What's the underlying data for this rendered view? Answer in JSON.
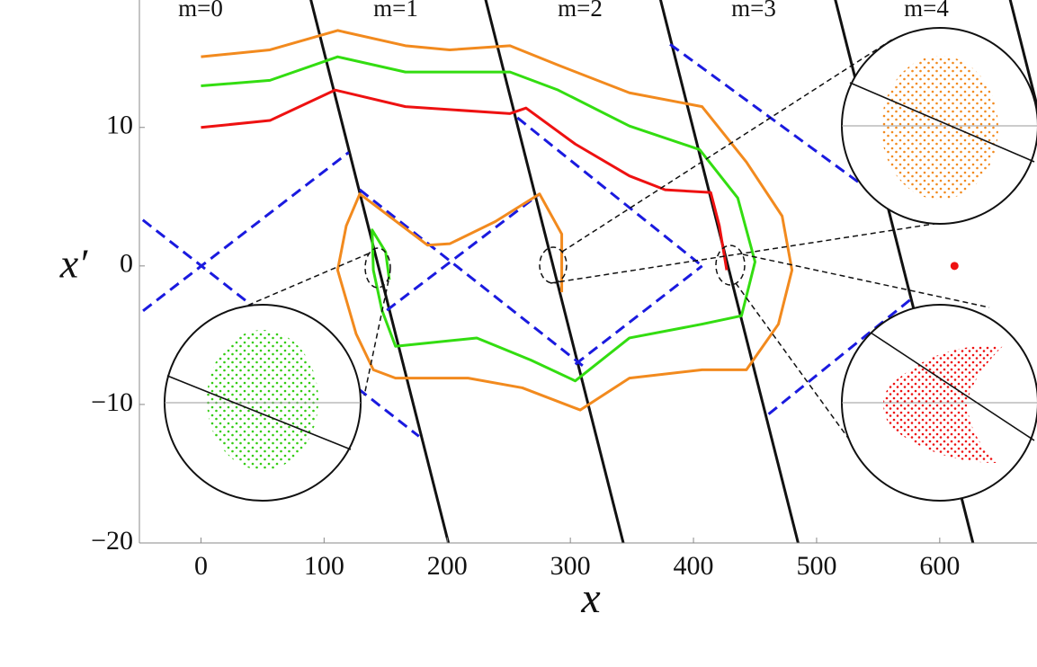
{
  "chart_data": {
    "type": "line",
    "xlabel": "x",
    "ylabel": "x′",
    "xlim": [
      -50,
      679
    ],
    "ylim": [
      -20,
      19.2
    ],
    "xticks": [
      0,
      100,
      200,
      300,
      400,
      500,
      600
    ],
    "yticks": [
      {
        "value": -20,
        "label": "−20"
      },
      {
        "value": -10,
        "label": "−10"
      },
      0,
      10
    ],
    "annotations": [
      "m=0",
      "m=1",
      "m=2",
      "m=3",
      "m=4"
    ],
    "series": [
      {
        "color": "#111111",
        "dashed": false,
        "x": [
          87,
          201
        ],
        "values": [
          20,
          -20
        ]
      },
      {
        "color": "#111111",
        "dashed": false,
        "x": [
          229,
          343
        ],
        "values": [
          20,
          -20
        ]
      },
      {
        "color": "#111111",
        "dashed": false,
        "x": [
          371,
          485
        ],
        "values": [
          20,
          -20
        ]
      },
      {
        "color": "#111111",
        "dashed": false,
        "x": [
          513,
          627
        ],
        "values": [
          20,
          -20
        ]
      },
      {
        "color": "#111111",
        "dashed": false,
        "x": [
          655,
          769
        ],
        "values": [
          20,
          -20
        ]
      },
      {
        "color": "#1a1adf",
        "dashed": true,
        "x": [
          -80,
          120
        ],
        "values": [
          -5.5,
          8.2
        ]
      },
      {
        "color": "#1a1adf",
        "dashed": true,
        "x": [
          -80,
          177
        ],
        "values": [
          5.6,
          -12.3
        ]
      },
      {
        "color": "#1a1adf",
        "dashed": true,
        "x": [
          129,
          310
        ],
        "values": [
          5.5,
          -7.2
        ]
      },
      {
        "color": "#1a1adf",
        "dashed": true,
        "x": [
          151,
          275
        ],
        "values": [
          -3.2,
          5.2
        ]
      },
      {
        "color": "#1a1adf",
        "dashed": true,
        "x": [
          257,
          407
        ],
        "values": [
          10.7,
          0
        ]
      },
      {
        "color": "#1a1adf",
        "dashed": true,
        "x": [
          381,
          567
        ],
        "values": [
          16,
          3.9
        ]
      },
      {
        "color": "#1a1adf",
        "dashed": true,
        "x": [
          304,
          407
        ],
        "values": [
          -7.1,
          0
        ]
      },
      {
        "color": "#1a1adf",
        "dashed": true,
        "x": [
          461,
          578
        ],
        "values": [
          -10.7,
          -2.3
        ]
      },
      {
        "color": "#f28a1e",
        "dashed": false,
        "x": [
          0,
          56,
          111,
          166,
          202,
          251,
          290,
          348,
          407,
          443,
          472,
          480,
          469,
          443,
          407,
          348,
          308,
          261,
          217,
          158,
          140,
          126,
          111,
          118,
          129,
          184,
          202,
          239,
          275,
          293,
          293
        ],
        "values": [
          15.1,
          15.6,
          17.0,
          15.9,
          15.6,
          15.9,
          14.5,
          12.5,
          11.5,
          7.5,
          3.6,
          -0.3,
          -4.2,
          -7.5,
          -7.5,
          -8.1,
          -10.4,
          -8.8,
          -8.1,
          -8.1,
          -7.5,
          -4.9,
          -0.3,
          2.9,
          5.2,
          1.5,
          1.6,
          3.2,
          5.2,
          2.3,
          -1.9
        ]
      },
      {
        "color": "#33dd11",
        "dashed": false,
        "x": [
          0,
          56,
          111,
          166,
          251,
          290,
          348,
          405,
          436,
          450,
          439,
          407,
          348,
          304,
          268,
          224,
          158,
          147,
          140,
          139,
          150,
          153
        ],
        "values": [
          13.0,
          13.4,
          15.1,
          14.0,
          14.0,
          12.7,
          10.1,
          8.4,
          4.9,
          0.3,
          -3.6,
          -4.2,
          -5.2,
          -8.3,
          -6.8,
          -5.2,
          -5.8,
          -3.2,
          -0.3,
          2.6,
          1.0,
          -1.0
        ]
      },
      {
        "color": "#ee1111",
        "dashed": false,
        "x": [
          0,
          56,
          109,
          166,
          251,
          264,
          304,
          348,
          377,
          414,
          421,
          427
        ],
        "values": [
          10.0,
          10.5,
          12.7,
          11.5,
          11.0,
          11.4,
          8.8,
          6.5,
          5.5,
          5.3,
          2.9,
          -0.3
        ]
      }
    ],
    "points": [
      {
        "x": 612,
        "y": 0,
        "color": "#ee1111"
      }
    ]
  }
}
